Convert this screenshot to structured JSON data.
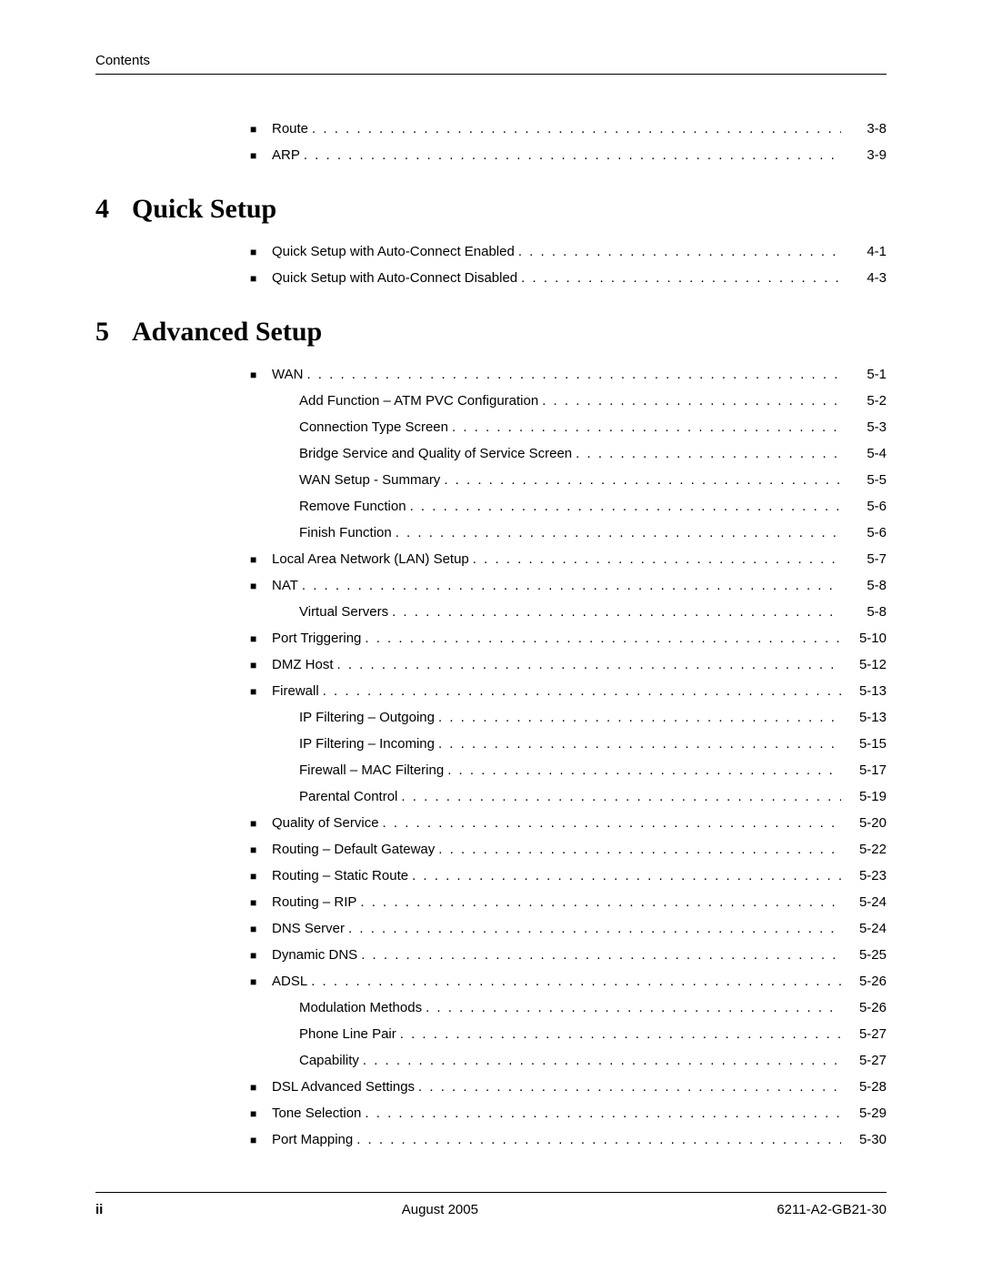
{
  "header": {
    "running_head": "Contents"
  },
  "pretoc": [
    {
      "label": "Route",
      "page": "3-8"
    },
    {
      "label": "ARP",
      "page": "3-9"
    }
  ],
  "chapters": [
    {
      "num": "4",
      "title": "Quick Setup",
      "entries": [
        {
          "level": 0,
          "label": "Quick Setup with Auto-Connect Enabled",
          "page": "4-1"
        },
        {
          "level": 0,
          "label": "Quick Setup with Auto-Connect Disabled",
          "page": "4-3"
        }
      ]
    },
    {
      "num": "5",
      "title": "Advanced Setup",
      "entries": [
        {
          "level": 0,
          "label": "WAN",
          "page": "5-1"
        },
        {
          "level": 1,
          "label": "Add Function – ATM PVC Configuration",
          "page": "5-2"
        },
        {
          "level": 1,
          "label": "Connection Type Screen",
          "page": "5-3"
        },
        {
          "level": 1,
          "label": "Bridge Service and Quality of Service Screen",
          "page": "5-4"
        },
        {
          "level": 1,
          "label": "WAN Setup - Summary",
          "page": "5-5"
        },
        {
          "level": 1,
          "label": "Remove Function",
          "page": "5-6"
        },
        {
          "level": 1,
          "label": "Finish Function",
          "page": "5-6"
        },
        {
          "level": 0,
          "label": "Local Area Network (LAN) Setup",
          "page": "5-7"
        },
        {
          "level": 0,
          "label": "NAT",
          "page": "5-8"
        },
        {
          "level": 1,
          "label": "Virtual Servers",
          "page": "5-8"
        },
        {
          "level": 0,
          "label": "Port Triggering",
          "page": "5-10"
        },
        {
          "level": 0,
          "label": "DMZ Host",
          "page": "5-12"
        },
        {
          "level": 0,
          "label": "Firewall",
          "page": "5-13"
        },
        {
          "level": 1,
          "label": "IP Filtering – Outgoing",
          "page": "5-13"
        },
        {
          "level": 1,
          "label": "IP Filtering – Incoming",
          "page": "5-15"
        },
        {
          "level": 1,
          "label": "Firewall – MAC Filtering",
          "page": "5-17"
        },
        {
          "level": 1,
          "label": "Parental Control",
          "page": "5-19"
        },
        {
          "level": 0,
          "label": "Quality of Service",
          "page": "5-20"
        },
        {
          "level": 0,
          "label": "Routing – Default Gateway",
          "page": "5-22"
        },
        {
          "level": 0,
          "label": "Routing – Static Route",
          "page": "5-23"
        },
        {
          "level": 0,
          "label": "Routing – RIP",
          "page": "5-24"
        },
        {
          "level": 0,
          "label": "DNS Server",
          "page": "5-24"
        },
        {
          "level": 0,
          "label": "Dynamic DNS",
          "page": "5-25"
        },
        {
          "level": 0,
          "label": "ADSL",
          "page": "5-26"
        },
        {
          "level": 1,
          "label": "Modulation Methods",
          "page": "5-26"
        },
        {
          "level": 1,
          "label": "Phone Line Pair",
          "page": "5-27"
        },
        {
          "level": 1,
          "label": "Capability",
          "page": "5-27"
        },
        {
          "level": 0,
          "label": "DSL Advanced Settings",
          "page": "5-28"
        },
        {
          "level": 0,
          "label": "Tone Selection",
          "page": "5-29"
        },
        {
          "level": 0,
          "label": "Port Mapping",
          "page": "5-30"
        }
      ]
    }
  ],
  "footer": {
    "page_num": "ii",
    "date": "August 2005",
    "doc_id": "6211-A2-GB21-30"
  },
  "style": {
    "font_body_pt": 15,
    "font_chapter_pt": 30,
    "chapter_font": "Times New Roman",
    "body_font": "Arial",
    "dot_leader_char": ".",
    "text_color": "#000000",
    "background_color": "#ffffff"
  }
}
